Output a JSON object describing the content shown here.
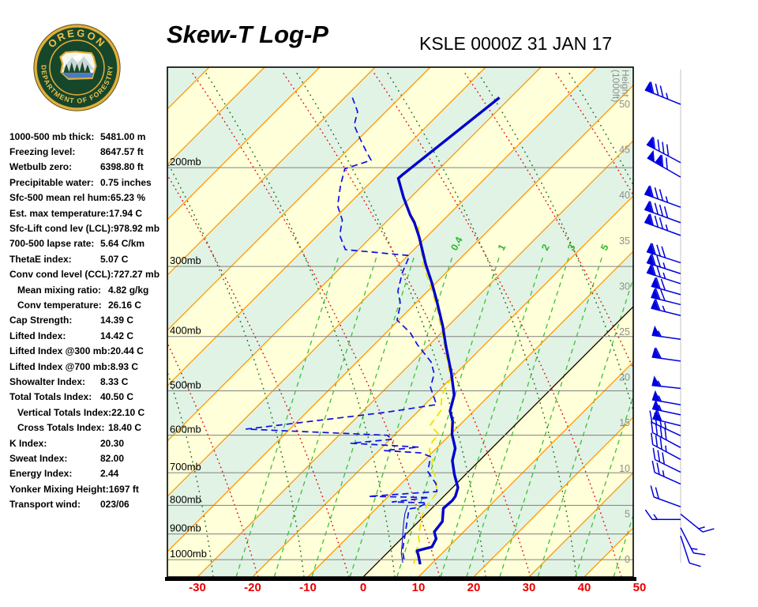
{
  "header": {
    "title": "Skew-T Log-P",
    "station": "KSLE 0000Z 31 JAN 17",
    "logo_text_top": "OREGON",
    "logo_text_bottom": "DEPARTMENT OF FORESTRY"
  },
  "stats": [
    {
      "label": "1000-500 mb thick:",
      "value": "5481.00 m",
      "indent": false
    },
    {
      "label": "Freezing level:",
      "value": "8647.57 ft",
      "indent": false
    },
    {
      "label": "Wetbulb zero:",
      "value": "6398.80 ft",
      "indent": false
    },
    {
      "label": "Precipitable water:",
      "value": "0.75 inches",
      "indent": false
    },
    {
      "label": "Sfc-500 mean rel hum:",
      "value": "65.23 %",
      "indent": false
    },
    {
      "label": "Est. max temperature:",
      "value": "17.94 C",
      "indent": false
    },
    {
      "label": "Sfc-Lift cond lev (LCL):",
      "value": "978.92 mb",
      "indent": false
    },
    {
      "label": "700-500 lapse rate:",
      "value": "5.64 C/km",
      "indent": false
    },
    {
      "label": "ThetaE index:",
      "value": "5.07 C",
      "indent": false
    },
    {
      "label": "Conv cond level (CCL):",
      "value": "727.27 mb",
      "indent": false
    },
    {
      "label": "Mean mixing ratio:",
      "value": "4.82 g/kg",
      "indent": true
    },
    {
      "label": "Conv temperature:",
      "value": "26.16 C",
      "indent": true
    },
    {
      "label": "Cap Strength:",
      "value": "14.39 C",
      "indent": false
    },
    {
      "label": "Lifted Index:",
      "value": "14.42 C",
      "indent": false
    },
    {
      "label": "Lifted Index @300 mb:",
      "value": "20.44 C",
      "indent": false
    },
    {
      "label": "Lifted Index @700 mb:",
      "value": "8.93 C",
      "indent": false
    },
    {
      "label": "Showalter Index:",
      "value": "8.33 C",
      "indent": false
    },
    {
      "label": "Total Totals Index:",
      "value": "40.50 C",
      "indent": false
    },
    {
      "label": "Vertical Totals Index:",
      "value": "22.10 C",
      "indent": true
    },
    {
      "label": "Cross Totals Index:",
      "value": "18.40 C",
      "indent": true
    },
    {
      "label": "K Index:",
      "value": "20.30",
      "indent": false
    },
    {
      "label": "Sweat Index:",
      "value": "82.00",
      "indent": false
    },
    {
      "label": "Energy Index:",
      "value": "2.44",
      "indent": false
    },
    {
      "label": "Yonker Mixing Height:",
      "value": "1697 ft",
      "indent": false
    },
    {
      "label": "Transport wind:",
      "value": "023/06",
      "indent": false
    }
  ],
  "chart_data": {
    "type": "skew-t",
    "title": "Skew-T Log-P",
    "station": "KSLE 0000Z 31 JAN 17",
    "temp_ticks_c": [
      -30,
      -20,
      -10,
      0,
      10,
      20,
      30,
      40,
      50
    ],
    "pressure_levels_mb": [
      200,
      300,
      400,
      500,
      600,
      700,
      800,
      900,
      1000
    ],
    "pressure_label_suffix": "mb",
    "height_ticks_kft": [
      50,
      45,
      40,
      35,
      30,
      25,
      20,
      15,
      10,
      5,
      0
    ],
    "height_axis_label_line1": "Height",
    "height_axis_label_line2": "(1000ft)",
    "mixing_ratio_lines": [
      {
        "t_surface_c": -23.0
      },
      {
        "t_surface_c": -16.1
      },
      {
        "t_surface_c": -9.3
      },
      {
        "t_surface_c": -2.4,
        "label": "0.4"
      },
      {
        "t_surface_c": 6.1,
        "label": "1"
      },
      {
        "t_surface_c": 14.0,
        "label": "2"
      },
      {
        "t_surface_c": 18.7,
        "label": "3"
      },
      {
        "t_surface_c": 24.7,
        "label": "5"
      },
      {
        "t_surface_c": 31.6
      },
      {
        "t_surface_c": 38.4
      },
      {
        "t_surface_c": 45.3
      }
    ],
    "colors": {
      "band_yellow": "#FFFFD9",
      "band_green": "#E1F3E4",
      "isotherm": "#FF9800",
      "zero_isotherm": "#000000",
      "dry_adiabat": "#DD1111",
      "moist_adiabat": "#1A6B1A",
      "mixing_ratio": "#3CC13C",
      "mixing_label": "#2EB82E",
      "pressure_line": "#808080",
      "pressure_label": "#000000",
      "temp_label": "#E80000",
      "height_label": "#8F8F8F",
      "temperature_line": "#0000CC",
      "dewpoint_line": "#0F0FE8",
      "wetbulb_line": "#F0E000",
      "aux_line": "#0000CC",
      "barb": "#0000DD",
      "barb_staff_guide": "#D8D8D8",
      "border": "#000000"
    },
    "profiles": {
      "temperature_p_mb_t_c": [
        [
          150,
          -62.0
        ],
        [
          206,
          -65.6
        ],
        [
          209,
          -65.7
        ],
        [
          226,
          -61.3
        ],
        [
          243,
          -56.9
        ],
        [
          251,
          -54.7
        ],
        [
          266,
          -51.3
        ],
        [
          298,
          -45.1
        ],
        [
          320,
          -40.9
        ],
        [
          345,
          -36.7
        ],
        [
          383,
          -31.0
        ],
        [
          415,
          -26.9
        ],
        [
          465,
          -20.9
        ],
        [
          509,
          -16.4
        ],
        [
          543,
          -14.3
        ],
        [
          566,
          -12.0
        ],
        [
          598,
          -9.7
        ],
        [
          633,
          -6.6
        ],
        [
          666,
          -4.9
        ],
        [
          704,
          -2.1
        ],
        [
          744,
          1.0
        ],
        [
          771,
          2.1
        ],
        [
          784,
          2.3
        ],
        [
          810,
          2.1
        ],
        [
          855,
          4.3
        ],
        [
          892,
          4.7
        ],
        [
          918,
          6.3
        ],
        [
          949,
          7.0
        ],
        [
          964,
          5.0
        ],
        [
          983,
          6.1
        ],
        [
          1019,
          8.0
        ]
      ],
      "dewpoint_p_mb_t_c": [
        [
          150,
          -88.6
        ],
        [
          159,
          -85.1
        ],
        [
          168,
          -83.3
        ],
        [
          177,
          -80.0
        ],
        [
          187,
          -76.4
        ],
        [
          194,
          -73.9
        ],
        [
          201,
          -77.1
        ],
        [
          215,
          -74.9
        ],
        [
          234,
          -71.7
        ],
        [
          248,
          -68.3
        ],
        [
          264,
          -66.0
        ],
        [
          280,
          -62.4
        ],
        [
          287,
          -49.7
        ],
        [
          308,
          -47.9
        ],
        [
          332,
          -45.4
        ],
        [
          350,
          -42.6
        ],
        [
          374,
          -40.3
        ],
        [
          394,
          -35.6
        ],
        [
          413,
          -32.3
        ],
        [
          444,
          -26.6
        ],
        [
          466,
          -23.9
        ],
        [
          493,
          -22.1
        ],
        [
          529,
          -17.9
        ],
        [
          546,
          -25.6
        ],
        [
          585,
          -47.9
        ],
        [
          600,
          -21.3
        ],
        [
          610,
          -19.6
        ],
        [
          620,
          -26.4
        ],
        [
          630,
          -13.4
        ],
        [
          639,
          -19.0
        ],
        [
          645,
          -12.0
        ],
        [
          655,
          -9.6
        ],
        [
          697,
          -7.3
        ],
        [
          732,
          -3.7
        ],
        [
          756,
          -2.1
        ],
        [
          771,
          -13.6
        ],
        [
          775,
          -2.4
        ],
        [
          789,
          -8.3
        ],
        [
          792,
          -1.9
        ],
        [
          807,
          -2.6
        ],
        [
          812,
          -4.0
        ],
        [
          855,
          -2.1
        ],
        [
          897,
          -0.3
        ],
        [
          965,
          2.4
        ],
        [
          1006,
          4.6
        ]
      ],
      "wetbulb_p_mb_t_c": [
        [
          234,
          -59.3
        ],
        [
          256,
          -53.1
        ],
        [
          298,
          -45.6
        ],
        [
          328,
          -39.9
        ],
        [
          355,
          -35.4
        ],
        [
          393,
          -30.0
        ],
        [
          433,
          -24.9
        ],
        [
          476,
          -20.0
        ],
        [
          509,
          -18.6
        ],
        [
          543,
          -16.0
        ],
        [
          576,
          -15.3
        ],
        [
          598,
          -12.1
        ],
        [
          615,
          -12.0
        ],
        [
          639,
          -10.9
        ],
        [
          659,
          -8.9
        ],
        [
          686,
          -7.4
        ],
        [
          707,
          -5.4
        ],
        [
          735,
          -3.4
        ],
        [
          760,
          -1.9
        ],
        [
          779,
          -1.6
        ],
        [
          800,
          -1.4
        ],
        [
          820,
          -0.9
        ],
        [
          847,
          0.0
        ],
        [
          875,
          1.3
        ],
        [
          904,
          2.4
        ],
        [
          933,
          4.0
        ],
        [
          967,
          4.9
        ],
        [
          993,
          6.1
        ],
        [
          1016,
          6.7
        ]
      ],
      "surface_aux_p_mb_t_c": [
        [
          800,
          -4.9
        ],
        [
          828,
          -3.9
        ],
        [
          861,
          -2.4
        ],
        [
          898,
          -0.7
        ],
        [
          936,
          1.0
        ],
        [
          974,
          2.6
        ],
        [
          1013,
          4.6
        ]
      ]
    },
    "wind_barbs": [
      {
        "h_kft": 50.0,
        "pennants": 1,
        "full": 3,
        "half": 1,
        "angle_deg": 158
      },
      {
        "h_kft": 43.6,
        "pennants": 1,
        "full": 4,
        "half": 0,
        "angle_deg": 152
      },
      {
        "h_kft": 42.0,
        "pennants": 2,
        "full": 2,
        "half": 0,
        "angle_deg": 150
      },
      {
        "h_kft": 38.7,
        "pennants": 1,
        "full": 3,
        "half": 1,
        "angle_deg": 160
      },
      {
        "h_kft": 37.0,
        "pennants": 1,
        "full": 4,
        "half": 0,
        "angle_deg": 160
      },
      {
        "h_kft": 35.6,
        "pennants": 1,
        "full": 3,
        "half": 1,
        "angle_deg": 160
      },
      {
        "h_kft": 32.6,
        "pennants": 1,
        "full": 3,
        "half": 0,
        "angle_deg": 162
      },
      {
        "h_kft": 31.4,
        "pennants": 1,
        "full": 2,
        "half": 1,
        "angle_deg": 162
      },
      {
        "h_kft": 30.3,
        "pennants": 1,
        "full": 2,
        "half": 1,
        "angle_deg": 162
      },
      {
        "h_kft": 29.1,
        "pennants": 1,
        "full": 2,
        "half": 0,
        "angle_deg": 164
      },
      {
        "h_kft": 28.0,
        "pennants": 1,
        "full": 2,
        "half": 0,
        "angle_deg": 166
      },
      {
        "h_kft": 26.8,
        "pennants": 1,
        "full": 1,
        "half": 1,
        "angle_deg": 166
      },
      {
        "h_kft": 24.2,
        "pennants": 1,
        "full": 0,
        "half": 1,
        "angle_deg": 172
      },
      {
        "h_kft": 21.8,
        "pennants": 1,
        "full": 1,
        "half": 0,
        "angle_deg": 172
      },
      {
        "h_kft": 18.8,
        "pennants": 1,
        "full": 0,
        "half": 1,
        "angle_deg": 174
      },
      {
        "h_kft": 17.0,
        "pennants": 1,
        "full": 0,
        "half": 1,
        "angle_deg": 170
      },
      {
        "h_kft": 15.9,
        "pennants": 1,
        "full": 0,
        "half": 1,
        "angle_deg": 168
      },
      {
        "h_kft": 14.7,
        "pennants": 1,
        "full": 1,
        "half": 0,
        "angle_deg": 166
      },
      {
        "h_kft": 13.6,
        "pennants": 0,
        "full": 3,
        "half": 1,
        "angle_deg": 155
      },
      {
        "h_kft": 12.3,
        "pennants": 0,
        "full": 4,
        "half": 0,
        "angle_deg": 152
      },
      {
        "h_kft": 11.0,
        "pennants": 0,
        "full": 3,
        "half": 1,
        "angle_deg": 152
      },
      {
        "h_kft": 9.6,
        "pennants": 0,
        "full": 3,
        "half": 0,
        "angle_deg": 154
      },
      {
        "h_kft": 8.3,
        "pennants": 0,
        "full": 2,
        "half": 1,
        "angle_deg": 156
      },
      {
        "h_kft": 5.8,
        "pennants": 0,
        "full": 2,
        "half": 0,
        "angle_deg": 160
      },
      {
        "h_kft": 5.0,
        "pennants": 0,
        "full": 1,
        "half": 1,
        "angle_deg": -39
      },
      {
        "h_kft": 4.4,
        "pennants": 0,
        "full": 1,
        "half": 1,
        "angle_deg": 180
      },
      {
        "h_kft": 3.5,
        "pennants": 0,
        "full": 1,
        "half": 1,
        "angle_deg": -63
      },
      {
        "h_kft": 2.6,
        "pennants": 0,
        "full": 1,
        "half": 0,
        "angle_deg": -72
      }
    ]
  }
}
